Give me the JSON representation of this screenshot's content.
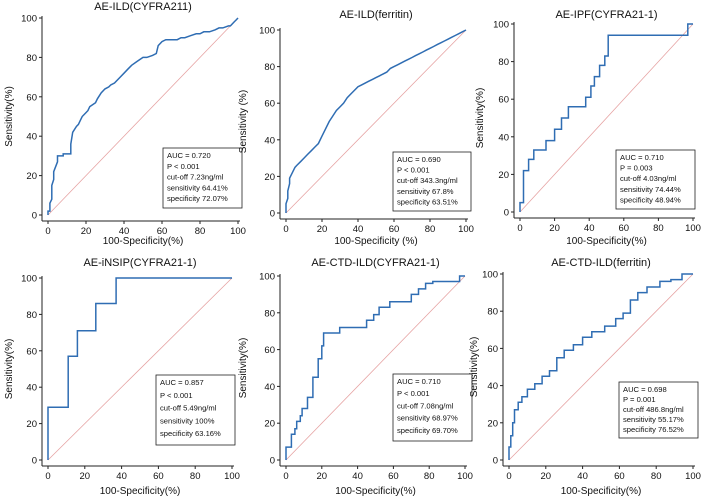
{
  "chart_data": [
    {
      "type": "line",
      "title": "AE-ILD(CYFRA211)",
      "xlabel": "100-Specificity(%)",
      "ylabel": "Sensitivity(%)",
      "xlim": [
        0,
        100
      ],
      "ylim": [
        0,
        100
      ],
      "xticks": [
        0,
        20,
        40,
        60,
        80,
        100
      ],
      "yticks": [
        0,
        20,
        40,
        60,
        80,
        100
      ],
      "annotation": [
        "AUC = 0.720",
        "P < 0.001",
        "cut-off 7.23ng/ml",
        "sensitivity 64.41%",
        "specificity 72.07%"
      ],
      "series": [
        {
          "name": "ROC",
          "x": [
            0,
            0,
            1,
            1,
            2,
            2,
            3,
            3,
            5,
            5,
            8,
            8,
            12,
            12,
            13,
            15,
            16,
            17,
            18,
            20,
            21,
            22,
            25,
            26,
            28,
            30,
            32,
            33,
            35,
            38,
            40,
            42,
            44,
            47,
            50,
            52,
            55,
            57,
            58,
            60,
            62,
            65,
            68,
            70,
            72,
            75,
            78,
            80,
            82,
            85,
            88,
            90,
            92,
            95,
            96,
            97,
            98,
            99,
            100
          ],
          "y": [
            0,
            2,
            2,
            6,
            8,
            15,
            18,
            22,
            27,
            30,
            30,
            31,
            31,
            36,
            42,
            45,
            46,
            48,
            50,
            52,
            53,
            55,
            57,
            59,
            62,
            64,
            65,
            66,
            67,
            70,
            72,
            74,
            76,
            78,
            80,
            80,
            81,
            82,
            86,
            88,
            89,
            89,
            89,
            90,
            90,
            91,
            92,
            92,
            93,
            93,
            94,
            95,
            95,
            96,
            96,
            97,
            98,
            99,
            100
          ]
        }
      ],
      "diagonal": [
        [
          0,
          0
        ],
        [
          100,
          100
        ]
      ]
    },
    {
      "type": "line",
      "title": "AE-ILD(ferritin)",
      "xlabel": "100-Specificity  (%)",
      "ylabel": "Sensitivity  (%)",
      "xlim": [
        0,
        100
      ],
      "ylim": [
        0,
        100
      ],
      "xticks": [
        0,
        20,
        40,
        60,
        80,
        100
      ],
      "yticks": [
        0,
        20,
        40,
        60,
        80,
        100
      ],
      "annotation": [
        "AUC = 0.690",
        "P < 0.001",
        "cut-off 343.3ng/ml",
        "sensitivity 67.8%",
        "specificity 63.51%"
      ],
      "series": [
        {
          "name": "ROC",
          "x": [
            0,
            0,
            1,
            1,
            2,
            2,
            3,
            4,
            5,
            6,
            8,
            10,
            12,
            14,
            16,
            18,
            20,
            22,
            24,
            26,
            28,
            30,
            32,
            34,
            36,
            38,
            40,
            42,
            44,
            46,
            48,
            50,
            52,
            54,
            56,
            58,
            60,
            62,
            64,
            66,
            68,
            70,
            72,
            74,
            76,
            78,
            80,
            82,
            84,
            86,
            88,
            90,
            92,
            94,
            96,
            98,
            100
          ],
          "y": [
            0,
            5,
            8,
            12,
            16,
            19,
            21,
            23,
            25,
            26,
            28,
            30,
            32,
            34,
            36,
            38,
            42,
            46,
            50,
            53,
            56,
            58,
            60,
            63,
            65,
            67,
            69,
            70,
            71,
            72,
            73,
            74,
            75,
            76,
            77,
            79,
            80,
            81,
            82,
            83,
            84,
            85,
            86,
            87,
            88,
            89,
            90,
            91,
            92,
            93,
            94,
            95,
            96,
            97,
            98,
            99,
            100
          ]
        }
      ],
      "diagonal": [
        [
          0,
          0
        ],
        [
          100,
          100
        ]
      ]
    },
    {
      "type": "line",
      "title": "AE-IPF(CYFRA21-1)",
      "xlabel": "100-Specificity(%)",
      "ylabel": "Sensitivity(%)",
      "xlim": [
        0,
        100
      ],
      "ylim": [
        0,
        100
      ],
      "xticks": [
        0,
        20,
        40,
        60,
        80,
        100
      ],
      "yticks": [
        0,
        20,
        40,
        60,
        80,
        100
      ],
      "annotation": [
        "AUC = 0.710",
        "P = 0.003",
        "cut-off 4.03ng/ml",
        "sensitivity 74.44%",
        "specificity 48.94%"
      ],
      "series": [
        {
          "name": "ROC",
          "x": [
            0,
            0,
            2,
            2,
            5,
            5,
            8,
            8,
            15,
            15,
            20,
            20,
            24,
            24,
            28,
            28,
            38,
            38,
            41,
            41,
            43,
            43,
            46,
            46,
            49,
            49,
            51,
            51,
            97,
            97,
            100
          ],
          "y": [
            0,
            5,
            5,
            22,
            22,
            28,
            28,
            33,
            33,
            38,
            38,
            44,
            44,
            50,
            50,
            56,
            56,
            61,
            61,
            67,
            67,
            72,
            72,
            78,
            78,
            83,
            83,
            94,
            94,
            100,
            100
          ]
        }
      ],
      "diagonal": [
        [
          0,
          0
        ],
        [
          100,
          100
        ]
      ]
    },
    {
      "type": "line",
      "title": "AE-iNSIP(CYFRA21-1)",
      "xlabel": "100-Specificity(%)",
      "ylabel": "Sensitivity(%)",
      "xlim": [
        0,
        100
      ],
      "ylim": [
        0,
        100
      ],
      "xticks": [
        0,
        20,
        40,
        60,
        80,
        100
      ],
      "yticks": [
        0,
        20,
        40,
        60,
        80,
        100
      ],
      "annotation": [
        "AUC = 0.857",
        "P < 0.001",
        "cut-off 5.49ng/ml",
        "sensitivity 100%",
        "specificity 63.16%"
      ],
      "series": [
        {
          "name": "ROC",
          "x": [
            0,
            0,
            11,
            11,
            16,
            16,
            21,
            21,
            26,
            26,
            37,
            37,
            100
          ],
          "y": [
            0,
            29,
            29,
            57,
            57,
            71,
            71,
            71,
            71,
            86,
            86,
            100,
            100
          ]
        }
      ],
      "diagonal": [
        [
          0,
          0
        ],
        [
          100,
          100
        ]
      ]
    },
    {
      "type": "line",
      "title": "AE-CTD-ILD(CYFRA21-1)",
      "xlabel": "100-Specificity(%)",
      "ylabel": "Sensitivity(%)",
      "xlim": [
        0,
        100
      ],
      "ylim": [
        0,
        100
      ],
      "xticks": [
        0,
        20,
        40,
        60,
        80,
        100
      ],
      "yticks": [
        0,
        20,
        40,
        60,
        80,
        100
      ],
      "annotation": [
        "AUC = 0.710",
        "P < 0.001",
        "cut-off 7.08ng/ml",
        "sensitivity 68.97%",
        "specificity 69.70%"
      ],
      "series": [
        {
          "name": "ROC",
          "x": [
            0,
            0,
            3,
            3,
            5,
            5,
            6,
            6,
            8,
            8,
            9,
            9,
            12,
            12,
            15,
            15,
            18,
            18,
            20,
            20,
            21,
            21,
            30,
            30,
            45,
            45,
            49,
            49,
            52,
            52,
            58,
            58,
            66,
            66,
            70,
            70,
            74,
            74,
            78,
            78,
            82,
            82,
            97,
            97,
            100
          ],
          "y": [
            0,
            7,
            7,
            14,
            14,
            17,
            17,
            21,
            21,
            24,
            24,
            28,
            28,
            34,
            34,
            45,
            45,
            55,
            55,
            62,
            62,
            69,
            69,
            72,
            72,
            76,
            76,
            79,
            79,
            83,
            83,
            86,
            86,
            86,
            86,
            90,
            90,
            93,
            93,
            96,
            96,
            97,
            97,
            100,
            100
          ]
        }
      ],
      "diagonal": [
        [
          0,
          0
        ],
        [
          100,
          100
        ]
      ]
    },
    {
      "type": "line",
      "title": "AE-CTD-ILD(ferritin)",
      "xlabel": "100-Specificity(%)",
      "ylabel": "Sensitivity(%)",
      "xlim": [
        0,
        100
      ],
      "ylim": [
        0,
        100
      ],
      "xticks": [
        0,
        20,
        40,
        60,
        80,
        100
      ],
      "yticks": [
        0,
        20,
        40,
        60,
        80,
        100
      ],
      "annotation": [
        "AUC = 0.698",
        "P = 0.001",
        "cut-off 486.8ng/ml",
        "sensitivity 55.17%",
        "specificity 76.52%"
      ],
      "series": [
        {
          "name": "ROC",
          "x": [
            0,
            0,
            1,
            1,
            2,
            2,
            3,
            3,
            5,
            5,
            7,
            7,
            10,
            10,
            14,
            14,
            18,
            18,
            22,
            22,
            26,
            26,
            30,
            30,
            35,
            35,
            40,
            40,
            45,
            45,
            52,
            52,
            58,
            58,
            62,
            62,
            66,
            66,
            70,
            70,
            75,
            75,
            82,
            82,
            88,
            88,
            94,
            94,
            100
          ],
          "y": [
            0,
            7,
            7,
            13,
            13,
            20,
            20,
            27,
            27,
            31,
            31,
            34,
            34,
            38,
            38,
            41,
            41,
            45,
            45,
            48,
            48,
            55,
            55,
            59,
            59,
            62,
            62,
            66,
            66,
            69,
            69,
            72,
            72,
            76,
            76,
            79,
            79,
            86,
            86,
            90,
            90,
            93,
            93,
            96,
            96,
            97,
            97,
            100,
            100
          ]
        }
      ],
      "diagonal": [
        [
          0,
          0
        ],
        [
          100,
          100
        ]
      ]
    }
  ]
}
